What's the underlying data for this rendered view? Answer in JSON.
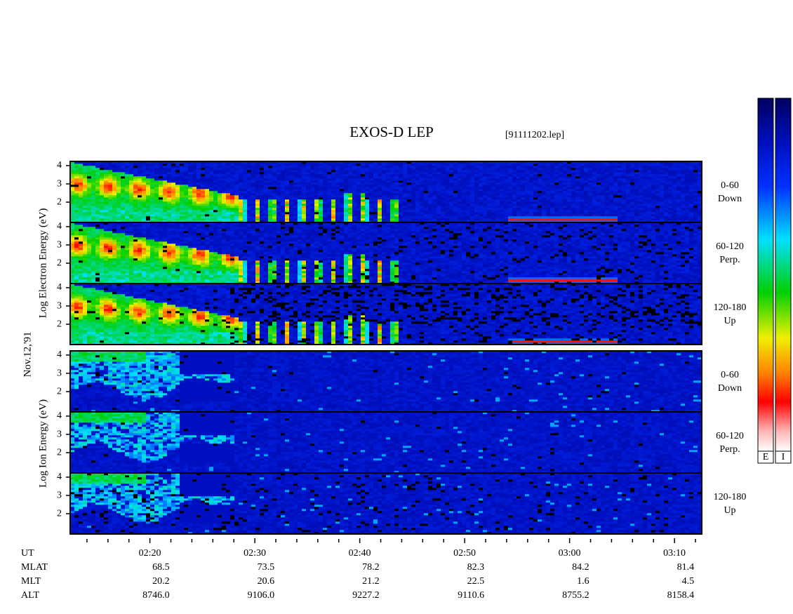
{
  "title": "EXOS-D LEP",
  "file": "[91111202.lep]",
  "chart_data": {
    "type": "spectrogram",
    "xlim": [
      132.4,
      192.6
    ],
    "xticks": [
      {
        "value": 140,
        "label": "02:20"
      },
      {
        "value": 150,
        "label": "02:30"
      },
      {
        "value": 160,
        "label": "02:40"
      },
      {
        "value": 170,
        "label": "02:50"
      },
      {
        "value": 180,
        "label": "03:00"
      },
      {
        "value": 190,
        "label": "03:10"
      }
    ],
    "minor_xticks": [
      134,
      136,
      138,
      142,
      144,
      146,
      148,
      152,
      154,
      156,
      158,
      162,
      164,
      166,
      168,
      172,
      174,
      176,
      178,
      182,
      184,
      186,
      188,
      192
    ],
    "date_label": "Nov.12,'91",
    "groups": [
      {
        "species": "electron",
        "ylabel": "Log Electron Energy (eV)",
        "panels": [
          {
            "pitch": "0-60",
            "direction": "Down",
            "ylim": [
              0.89,
              4.23
            ],
            "yticks": [
              2,
              3,
              4
            ]
          },
          {
            "pitch": "60-120",
            "direction": "Perp.",
            "ylim": [
              0.89,
              4.23
            ],
            "yticks": [
              2,
              3,
              4
            ]
          },
          {
            "pitch": "120-180",
            "direction": "Up",
            "ylim": [
              0.89,
              4.23
            ],
            "yticks": [
              2,
              3,
              4
            ]
          }
        ]
      },
      {
        "species": "ion",
        "ylabel": "Log Ion Energy (eV)",
        "panels": [
          {
            "pitch": "0-60",
            "direction": "Down",
            "ylim": [
              0.89,
              4.23
            ],
            "yticks": [
              2,
              3,
              4
            ]
          },
          {
            "pitch": "60-120",
            "direction": "Perp.",
            "ylim": [
              0.89,
              4.23
            ],
            "yticks": [
              2,
              3,
              4
            ]
          },
          {
            "pitch": "120-180",
            "direction": "Up",
            "ylim": [
              0.89,
              4.23
            ],
            "yticks": [
              2,
              3,
              4
            ]
          }
        ]
      }
    ],
    "colorbars": [
      "E",
      "I"
    ],
    "ephemeris": {
      "ut_label": "UT",
      "rows": [
        {
          "label": "MLAT",
          "values": [
            "68.5",
            "73.5",
            "78.2",
            "82.3",
            "84.2",
            "81.4"
          ]
        },
        {
          "label": "MLT",
          "values": [
            "20.2",
            "20.6",
            "21.2",
            "22.5",
            "1.6",
            "4.5"
          ]
        },
        {
          "label": "ALT",
          "values": [
            "8746.0",
            "9106.0",
            "9227.2",
            "9110.6",
            "8755.2",
            "8158.4"
          ]
        }
      ]
    }
  }
}
